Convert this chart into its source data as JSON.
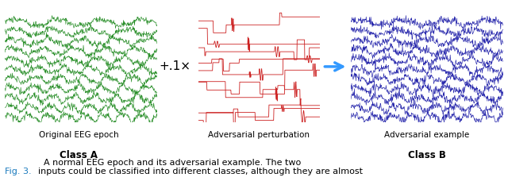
{
  "fig_width": 6.4,
  "fig_height": 2.33,
  "dpi": 100,
  "eeg_color": "#228B22",
  "adv_color": "#cc2222",
  "adv_example_color": "#2222aa",
  "arrow_color": "#3399ff",
  "caption_color": "#1a7abd",
  "n_channels_eeg": 11,
  "n_channels_pert": 9,
  "n_channels_adv": 11,
  "n_points": 400,
  "label1": "Original EEG epoch",
  "label1b": "Class A",
  "label2": "Adversarial perturbation",
  "label3": "Adversarial example",
  "label3b": "Class B",
  "operator": "+.1×",
  "caption_fig": "Fig. 3.",
  "caption_text": "  A normal EEG epoch and its adversarial example. The two\ninputs could be classified into different classes, although they are almost"
}
